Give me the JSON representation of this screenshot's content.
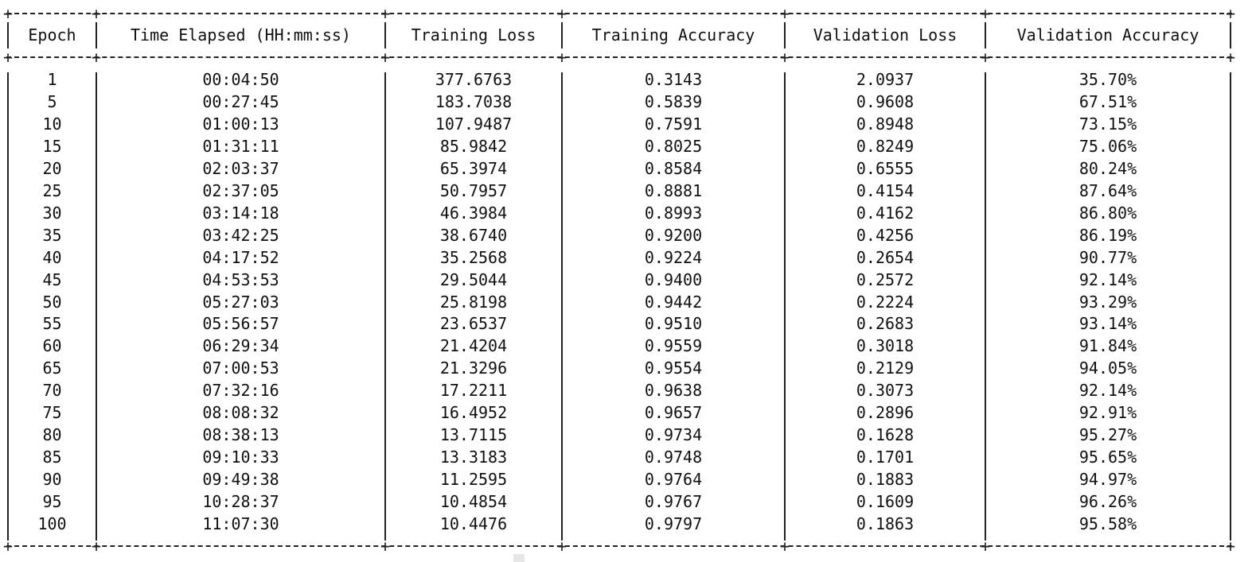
{
  "table": {
    "columns": [
      "Epoch",
      "Time Elapsed (HH:mm:ss)",
      "Training Loss",
      "Training Accuracy",
      "Validation Loss",
      "Validation Accuracy"
    ],
    "rows": [
      [
        "1",
        "00:04:50",
        "377.6763",
        "0.3143",
        "2.0937",
        "35.70%"
      ],
      [
        "5",
        "00:27:45",
        "183.7038",
        "0.5839",
        "0.9608",
        "67.51%"
      ],
      [
        "10",
        "01:00:13",
        "107.9487",
        "0.7591",
        "0.8948",
        "73.15%"
      ],
      [
        "15",
        "01:31:11",
        "85.9842",
        "0.8025",
        "0.8249",
        "75.06%"
      ],
      [
        "20",
        "02:03:37",
        "65.3974",
        "0.8584",
        "0.6555",
        "80.24%"
      ],
      [
        "25",
        "02:37:05",
        "50.7957",
        "0.8881",
        "0.4154",
        "87.64%"
      ],
      [
        "30",
        "03:14:18",
        "46.3984",
        "0.8993",
        "0.4162",
        "86.80%"
      ],
      [
        "35",
        "03:42:25",
        "38.6740",
        "0.9200",
        "0.4256",
        "86.19%"
      ],
      [
        "40",
        "04:17:52",
        "35.2568",
        "0.9224",
        "0.2654",
        "90.77%"
      ],
      [
        "45",
        "04:53:53",
        "29.5044",
        "0.9400",
        "0.2572",
        "92.14%"
      ],
      [
        "50",
        "05:27:03",
        "25.8198",
        "0.9442",
        "0.2224",
        "93.29%"
      ],
      [
        "55",
        "05:56:57",
        "23.6537",
        "0.9510",
        "0.2683",
        "93.14%"
      ],
      [
        "60",
        "06:29:34",
        "21.4204",
        "0.9559",
        "0.3018",
        "91.84%"
      ],
      [
        "65",
        "07:00:53",
        "21.3296",
        "0.9554",
        "0.2129",
        "94.05%"
      ],
      [
        "70",
        "07:32:16",
        "17.2211",
        "0.9638",
        "0.3073",
        "92.14%"
      ],
      [
        "75",
        "08:08:32",
        "16.4952",
        "0.9657",
        "0.2896",
        "92.91%"
      ],
      [
        "80",
        "08:38:13",
        "13.7115",
        "0.9734",
        "0.1628",
        "95.27%"
      ],
      [
        "85",
        "09:10:33",
        "13.3183",
        "0.9748",
        "0.1701",
        "95.65%"
      ],
      [
        "90",
        "09:49:38",
        "11.2595",
        "0.9764",
        "0.1883",
        "94.97%"
      ],
      [
        "95",
        "10:28:37",
        "10.4854",
        "0.9767",
        "0.1609",
        "96.26%"
      ],
      [
        "100",
        "11:07:30",
        "10.4476",
        "0.9797",
        "0.1863",
        "95.58%"
      ]
    ]
  },
  "colors": {
    "background": "#ffffff",
    "text": "#111111",
    "rule": "#222222",
    "cursor": "#e6e6e6"
  }
}
